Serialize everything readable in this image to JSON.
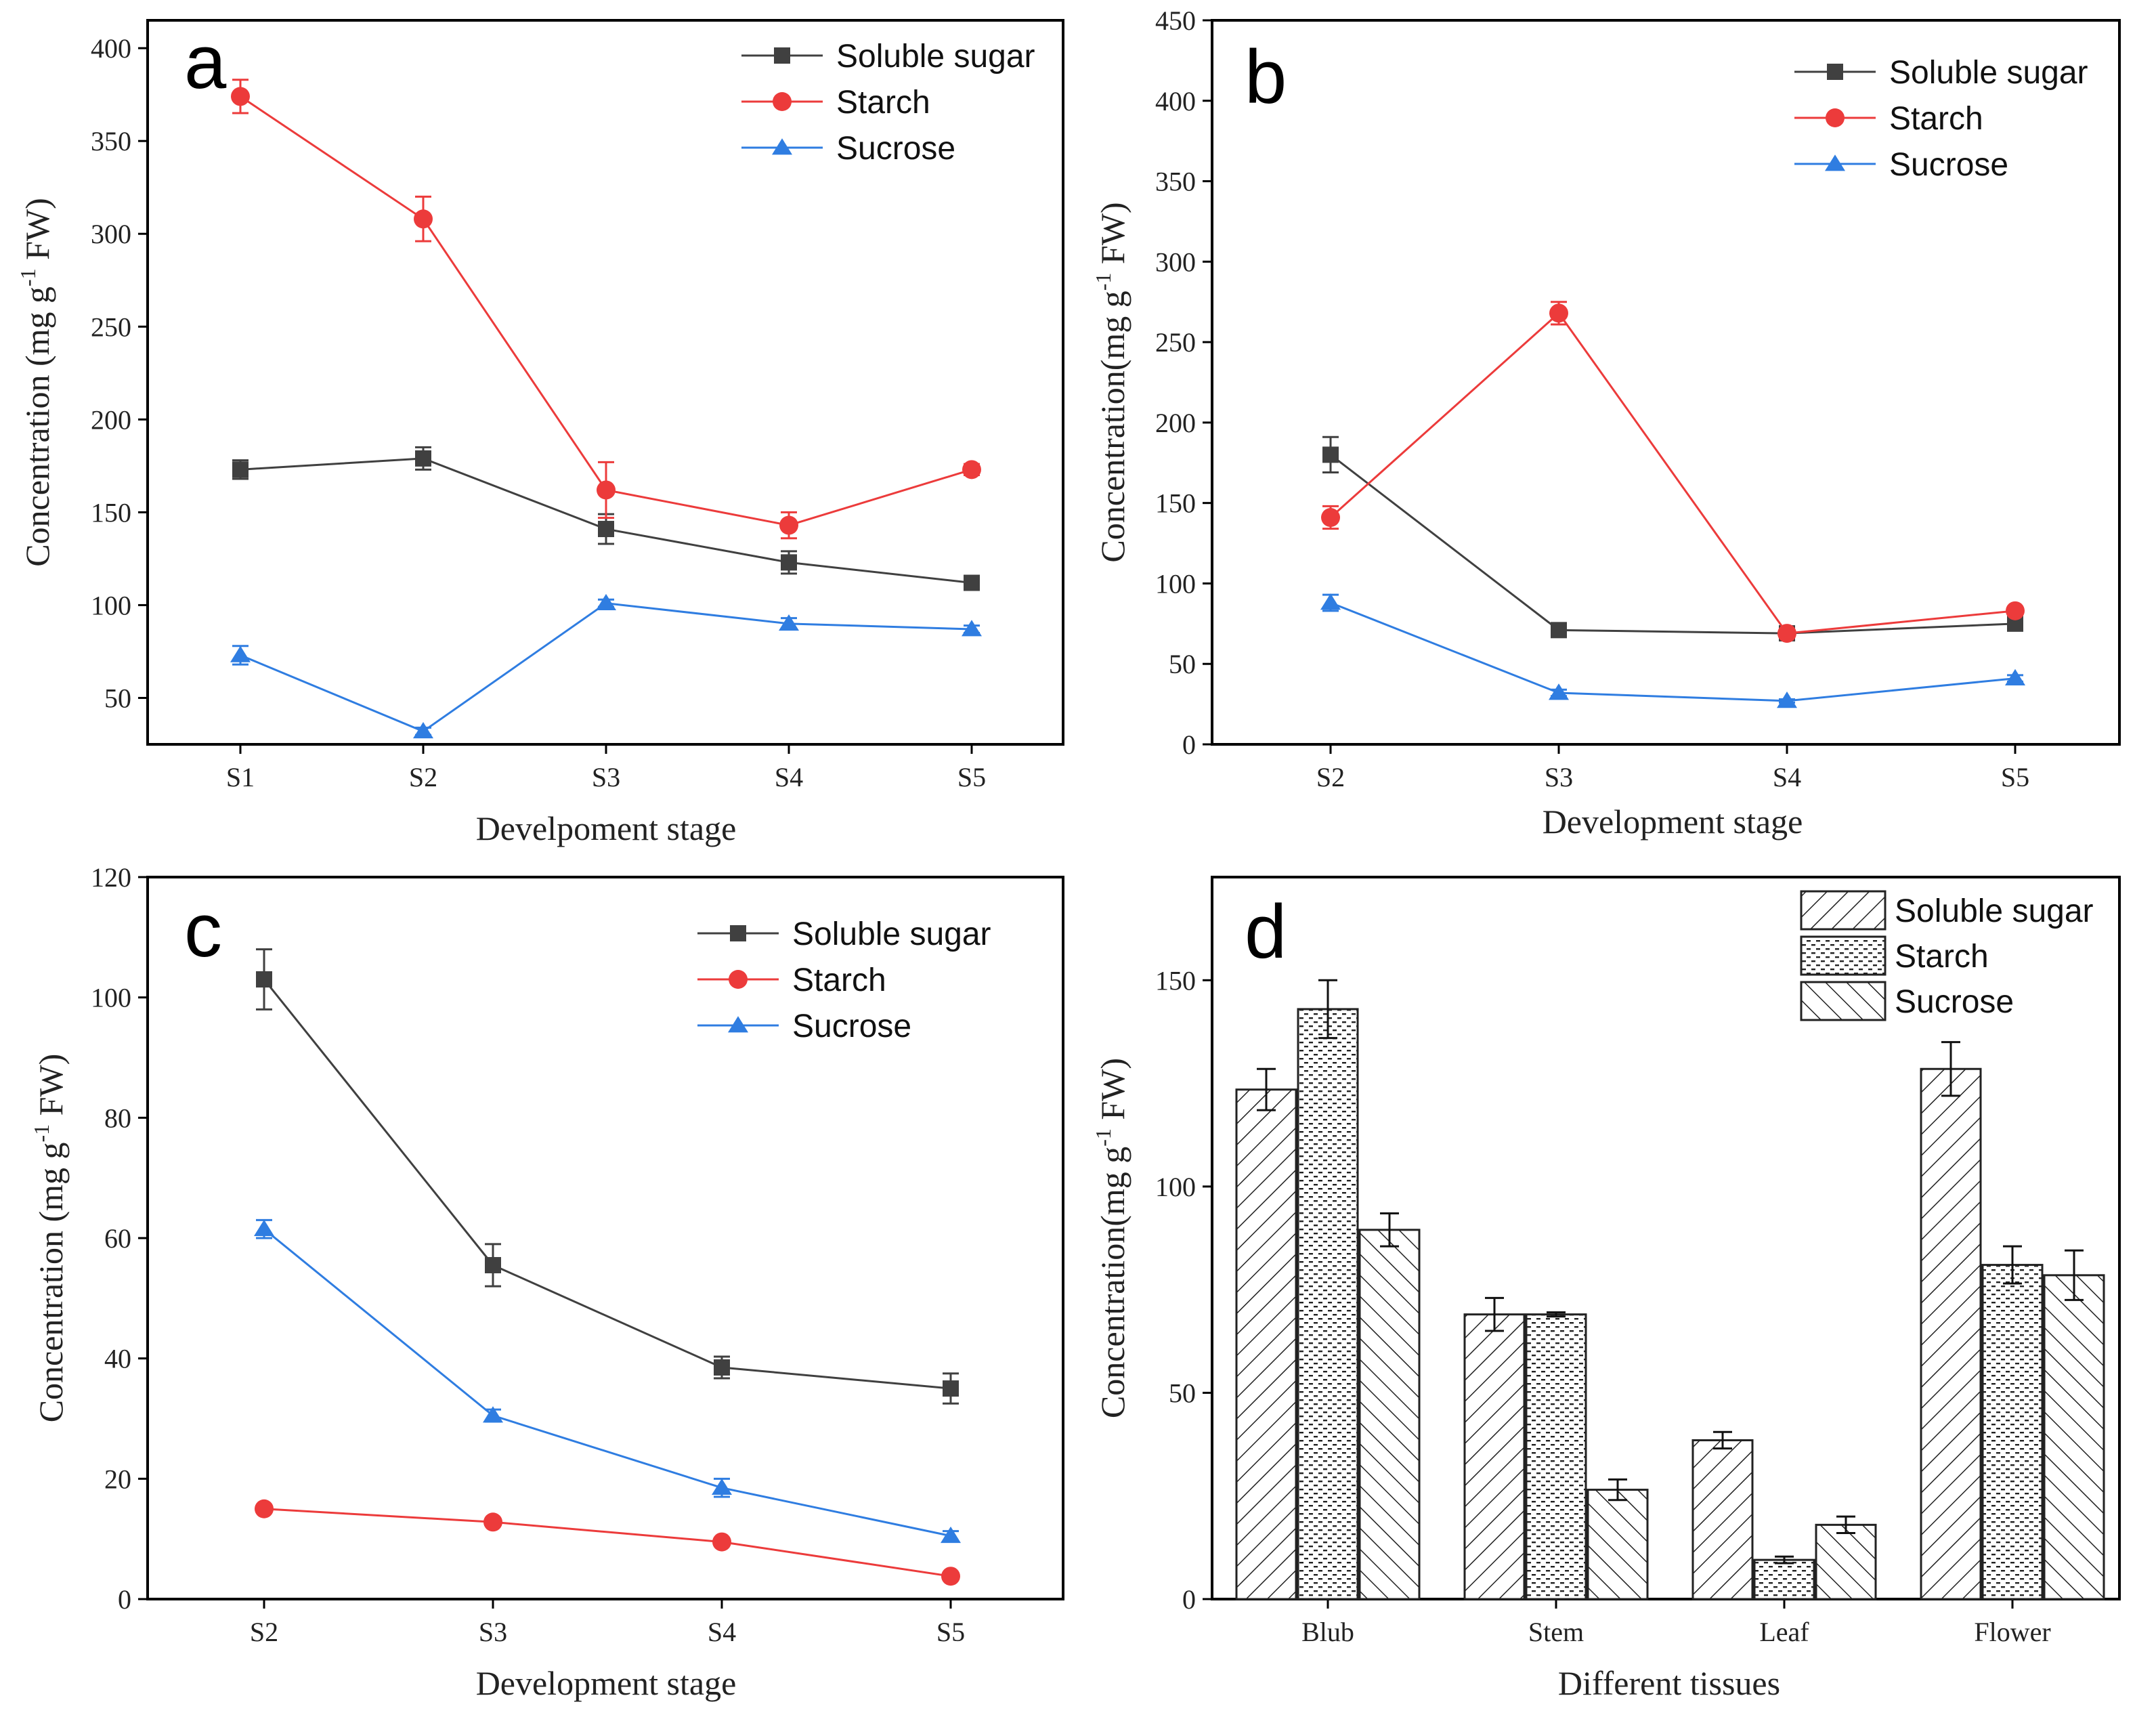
{
  "chart_data": [
    {
      "panel": "a",
      "type": "line",
      "xlabel": "Develpoment stage",
      "ylabel": "Concentration (mg g-1 FW)",
      "ylabel_parts": {
        "pre": "Concentration (mg g",
        "sup": "-1",
        "post": " FW)"
      },
      "ylim": [
        25,
        415
      ],
      "yticks": [
        50,
        100,
        150,
        200,
        250,
        300,
        350,
        400
      ],
      "categories": [
        "S1",
        "S2",
        "S3",
        "S4",
        "S5"
      ],
      "series": [
        {
          "name": "Soluble sugar",
          "color": "#404040",
          "marker": "square",
          "values": [
            173,
            179,
            141,
            123,
            112
          ],
          "errors": [
            5,
            6,
            8,
            6,
            3
          ]
        },
        {
          "name": "Starch",
          "color": "#ec3b3b",
          "marker": "circle",
          "values": [
            374,
            308,
            162,
            143,
            173
          ],
          "errors": [
            9,
            12,
            15,
            7,
            3
          ]
        },
        {
          "name": "Sucrose",
          "color": "#2f7de1",
          "marker": "triangle",
          "values": [
            73,
            32,
            101,
            90,
            87
          ],
          "errors": [
            5,
            2,
            2,
            3,
            2
          ]
        }
      ]
    },
    {
      "panel": "b",
      "type": "line",
      "xlabel": "Development stage",
      "ylabel": "Concentration(mg g-1 FW)",
      "ylabel_parts": {
        "pre": "Concentration(mg g",
        "sup": "-1",
        "post": " FW)"
      },
      "ylim": [
        0,
        450
      ],
      "yticks": [
        0,
        50,
        100,
        150,
        200,
        250,
        300,
        350,
        400,
        450
      ],
      "categories": [
        "S2",
        "S3",
        "S4",
        "S5"
      ],
      "series": [
        {
          "name": "Soluble sugar",
          "color": "#404040",
          "marker": "square",
          "values": [
            180,
            71,
            69,
            75
          ],
          "errors": [
            11,
            2,
            2,
            2
          ]
        },
        {
          "name": "Starch",
          "color": "#ec3b3b",
          "marker": "circle",
          "values": [
            141,
            268,
            69,
            83
          ],
          "errors": [
            7,
            7,
            2,
            2
          ]
        },
        {
          "name": "Sucrose",
          "color": "#2f7de1",
          "marker": "triangle",
          "values": [
            88,
            32,
            27,
            41
          ],
          "errors": [
            5,
            2,
            1,
            2
          ]
        }
      ]
    },
    {
      "panel": "c",
      "type": "line",
      "xlabel": "Development stage",
      "ylabel": "Concentration (mg g-1 FW)",
      "ylabel_parts": {
        "pre": "Concentration (mg g",
        "sup": "-1",
        "post": " FW)"
      },
      "ylim": [
        0,
        120
      ],
      "yticks": [
        0,
        20,
        40,
        60,
        80,
        100,
        120
      ],
      "categories": [
        "S2",
        "S3",
        "S4",
        "S5"
      ],
      "series": [
        {
          "name": "Soluble sugar",
          "color": "#404040",
          "marker": "square",
          "values": [
            103,
            55.5,
            38.5,
            35
          ],
          "errors": [
            5,
            3.5,
            1.8,
            2.5
          ]
        },
        {
          "name": "Starch",
          "color": "#ec3b3b",
          "marker": "circle",
          "values": [
            15,
            12.8,
            9.5,
            3.8
          ],
          "errors": [
            0.5,
            0.5,
            0.5,
            0.4
          ]
        },
        {
          "name": "Sucrose",
          "color": "#2f7de1",
          "marker": "triangle",
          "values": [
            61.5,
            30.5,
            18.5,
            10.5
          ],
          "errors": [
            1.5,
            1,
            1.5,
            0.8
          ]
        }
      ]
    },
    {
      "panel": "d",
      "type": "bar",
      "xlabel": "Different tissues",
      "ylabel": "Concentration(mg g-1 FW)",
      "ylabel_parts": {
        "pre": "Concentration(mg g",
        "sup": "-1",
        "post": " FW)"
      },
      "ylim": [
        0,
        175
      ],
      "yticks": [
        0,
        50,
        100,
        150
      ],
      "categories": [
        "Blub",
        "Stem",
        "Leaf",
        "Flower"
      ],
      "series": [
        {
          "name": "Soluble sugar",
          "pattern": "hatch-forward",
          "values": [
            123.5,
            69,
            38.5,
            128.5
          ],
          "errors": [
            5,
            4,
            2,
            6.5
          ]
        },
        {
          "name": "Starch",
          "pattern": "dots",
          "values": [
            143,
            69,
            9.5,
            81
          ],
          "errors": [
            7,
            0.5,
            0.8,
            4.5
          ]
        },
        {
          "name": "Sucrose",
          "pattern": "hatch-back",
          "values": [
            89.5,
            26.5,
            18,
            78.5
          ],
          "errors": [
            4,
            2.5,
            2,
            6
          ]
        }
      ]
    }
  ]
}
